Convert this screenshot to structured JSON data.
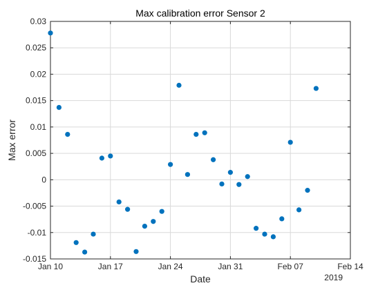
{
  "chart_data": {
    "type": "scatter",
    "title": "Max calibration error Sensor 2",
    "xlabel": "Date",
    "ylabel": "Max error",
    "year_label": "2019",
    "grid": true,
    "marker_color": "#0072BD",
    "xlim": [
      "2019-01-10",
      "2019-02-14"
    ],
    "ylim": [
      -0.015,
      0.03
    ],
    "x_ticks": [
      {
        "date": "2019-01-10",
        "label": "Jan 10"
      },
      {
        "date": "2019-01-17",
        "label": "Jan 17"
      },
      {
        "date": "2019-01-24",
        "label": "Jan 24"
      },
      {
        "date": "2019-01-31",
        "label": "Jan 31"
      },
      {
        "date": "2019-02-07",
        "label": "Feb 07"
      },
      {
        "date": "2019-02-14",
        "label": "Feb 14"
      }
    ],
    "y_ticks": [
      {
        "value": 0.03,
        "label": "0.03"
      },
      {
        "value": 0.025,
        "label": "0.025"
      },
      {
        "value": 0.02,
        "label": "0.02"
      },
      {
        "value": 0.015,
        "label": "0.015"
      },
      {
        "value": 0.01,
        "label": "0.01"
      },
      {
        "value": 0.005,
        "label": "0.005"
      },
      {
        "value": 0,
        "label": "0"
      },
      {
        "value": -0.005,
        "label": "-0.005"
      },
      {
        "value": -0.01,
        "label": "-0.01"
      },
      {
        "value": -0.015,
        "label": "-0.015"
      }
    ],
    "points": [
      {
        "x": "2019-01-10",
        "y": 0.0278
      },
      {
        "x": "2019-01-11",
        "y": 0.0137
      },
      {
        "x": "2019-01-12",
        "y": 0.0086
      },
      {
        "x": "2019-01-13",
        "y": -0.0119
      },
      {
        "x": "2019-01-14",
        "y": -0.0137
      },
      {
        "x": "2019-01-15",
        "y": -0.0103
      },
      {
        "x": "2019-01-16",
        "y": 0.0041
      },
      {
        "x": "2019-01-17",
        "y": 0.0045
      },
      {
        "x": "2019-01-18",
        "y": -0.0042
      },
      {
        "x": "2019-01-19",
        "y": -0.0056
      },
      {
        "x": "2019-01-20",
        "y": -0.0136
      },
      {
        "x": "2019-01-21",
        "y": -0.0088
      },
      {
        "x": "2019-01-22",
        "y": -0.0079
      },
      {
        "x": "2019-01-23",
        "y": -0.006
      },
      {
        "x": "2019-01-24",
        "y": 0.0029
      },
      {
        "x": "2019-01-25",
        "y": 0.0179
      },
      {
        "x": "2019-01-26",
        "y": 0.001
      },
      {
        "x": "2019-01-27",
        "y": 0.0086
      },
      {
        "x": "2019-01-28",
        "y": 0.0089
      },
      {
        "x": "2019-01-29",
        "y": 0.0038
      },
      {
        "x": "2019-01-30",
        "y": -0.0008
      },
      {
        "x": "2019-01-31",
        "y": 0.0014
      },
      {
        "x": "2019-02-01",
        "y": -0.0009
      },
      {
        "x": "2019-02-02",
        "y": 0.0006
      },
      {
        "x": "2019-02-03",
        "y": -0.0092
      },
      {
        "x": "2019-02-04",
        "y": -0.0103
      },
      {
        "x": "2019-02-05",
        "y": -0.0108
      },
      {
        "x": "2019-02-06",
        "y": -0.0074
      },
      {
        "x": "2019-02-07",
        "y": 0.0071
      },
      {
        "x": "2019-02-08",
        "y": -0.0057
      },
      {
        "x": "2019-02-09",
        "y": -0.002
      },
      {
        "x": "2019-02-10",
        "y": 0.0173
      }
    ]
  }
}
